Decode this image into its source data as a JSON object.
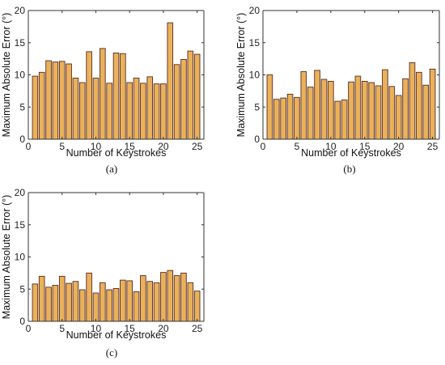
{
  "colors": {
    "bar_fill": "#E9B15A",
    "bar_edge": "#5a2a24",
    "axis": "#333333"
  },
  "chart_data": [
    {
      "type": "bar",
      "caption": "(a)",
      "xlabel": "Number of Keystrokes",
      "ylabel": "Maximum Absolute Error (°)",
      "xlim": [
        0,
        26
      ],
      "ylim": [
        0,
        20
      ],
      "xticks": [
        0,
        5,
        10,
        15,
        20,
        25
      ],
      "yticks": [
        0,
        5,
        10,
        15,
        20
      ],
      "grid": false,
      "x": [
        1,
        2,
        3,
        4,
        5,
        6,
        7,
        8,
        9,
        10,
        11,
        12,
        13,
        14,
        15,
        16,
        17,
        18,
        19,
        20,
        21,
        22,
        23,
        24,
        25
      ],
      "values": [
        9.8,
        10.4,
        12.2,
        12.0,
        12.1,
        11.7,
        9.5,
        8.8,
        13.6,
        9.5,
        14.1,
        8.7,
        13.4,
        13.3,
        8.8,
        9.5,
        8.7,
        9.7,
        8.6,
        8.6,
        18.1,
        11.6,
        12.4,
        13.7,
        13.2
      ]
    },
    {
      "type": "bar",
      "caption": "(b)",
      "xlabel": "Number of Keystrokes",
      "ylabel": "Maximum Absolute Error (°)",
      "xlim": [
        0,
        26
      ],
      "ylim": [
        0,
        20
      ],
      "xticks": [
        0,
        5,
        10,
        15,
        20,
        25
      ],
      "yticks": [
        0,
        5,
        10,
        15,
        20
      ],
      "grid": false,
      "x": [
        1,
        2,
        3,
        4,
        5,
        6,
        7,
        8,
        9,
        10,
        11,
        12,
        13,
        14,
        15,
        16,
        17,
        18,
        19,
        20,
        21,
        22,
        23,
        24,
        25
      ],
      "values": [
        10.0,
        6.2,
        6.4,
        7.0,
        6.5,
        10.5,
        8.1,
        10.7,
        9.3,
        9.0,
        5.9,
        6.1,
        8.9,
        9.8,
        9.0,
        8.8,
        8.3,
        10.8,
        8.2,
        6.8,
        9.4,
        11.9,
        10.4,
        8.4,
        10.9
      ]
    },
    {
      "type": "bar",
      "caption": "(c)",
      "xlabel": "Number of Keystrokes",
      "ylabel": "Maximum Absolute Error (°)",
      "xlim": [
        0,
        26
      ],
      "ylim": [
        0,
        20
      ],
      "xticks": [
        0,
        5,
        10,
        15,
        20,
        25
      ],
      "yticks": [
        0,
        5,
        10,
        15,
        20
      ],
      "grid": false,
      "x": [
        1,
        2,
        3,
        4,
        5,
        6,
        7,
        8,
        9,
        10,
        11,
        12,
        13,
        14,
        15,
        16,
        17,
        18,
        19,
        20,
        21,
        22,
        23,
        24,
        25
      ],
      "values": [
        5.8,
        7.0,
        5.3,
        5.6,
        7.0,
        5.9,
        6.2,
        4.9,
        7.5,
        4.4,
        6.0,
        4.9,
        5.1,
        6.4,
        6.3,
        4.6,
        7.1,
        6.2,
        6.0,
        7.6,
        7.9,
        7.1,
        7.5,
        6.0,
        4.7
      ]
    }
  ]
}
